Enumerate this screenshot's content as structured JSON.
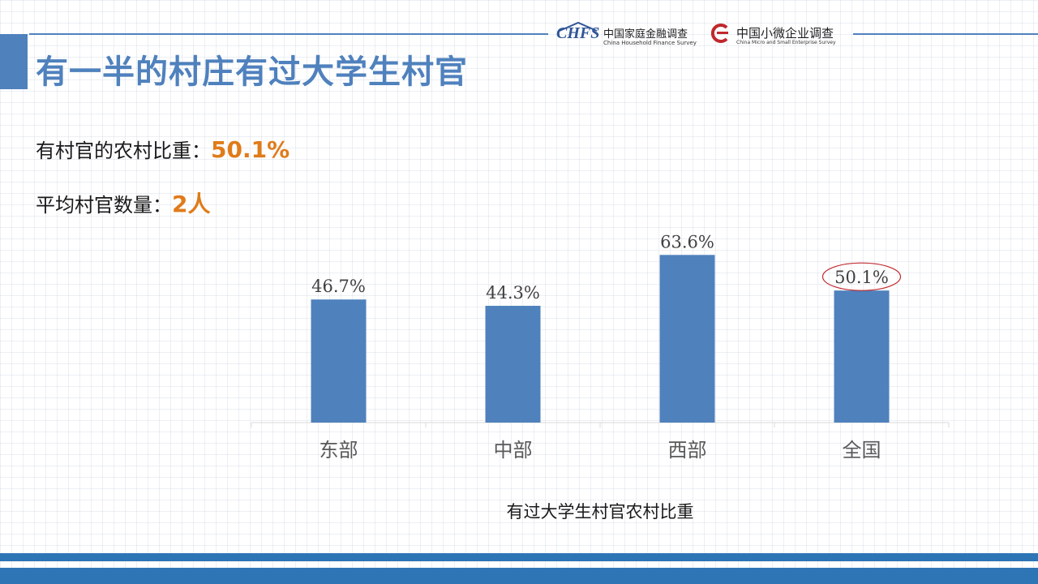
{
  "slide": {
    "title": "有一半的村庄有过大学生村官"
  },
  "logos": {
    "chfs_abbr": "CHFS",
    "chfs_cn": "中国家庭金融调查",
    "chfs_en": "China Household Finance Survey",
    "cmes_cn": "中国小微企业调查",
    "cmes_en": "China Micro and Small Enterprise Survey",
    "accent": "#c0282d"
  },
  "stats": [
    {
      "label": "有村官的农村比重：",
      "value": "50.1%"
    },
    {
      "label": "平均村官数量：",
      "value": "2人"
    }
  ],
  "colors": {
    "bar": "#4f81bd",
    "highlight": "#e07b1a",
    "circle": "#c0282d"
  },
  "chart_data": {
    "type": "bar",
    "title": "",
    "xlabel": "有过大学生村官农村比重",
    "ylabel": "",
    "categories": [
      "东部",
      "中部",
      "西部",
      "全国"
    ],
    "values": [
      46.7,
      44.3,
      63.6,
      50.1
    ],
    "data_labels": [
      "46.7%",
      "44.3%",
      "63.6%",
      "50.1%"
    ],
    "ylim": [
      0,
      80
    ],
    "grid": false,
    "legend": "none",
    "highlighted_label": "50.1%"
  }
}
